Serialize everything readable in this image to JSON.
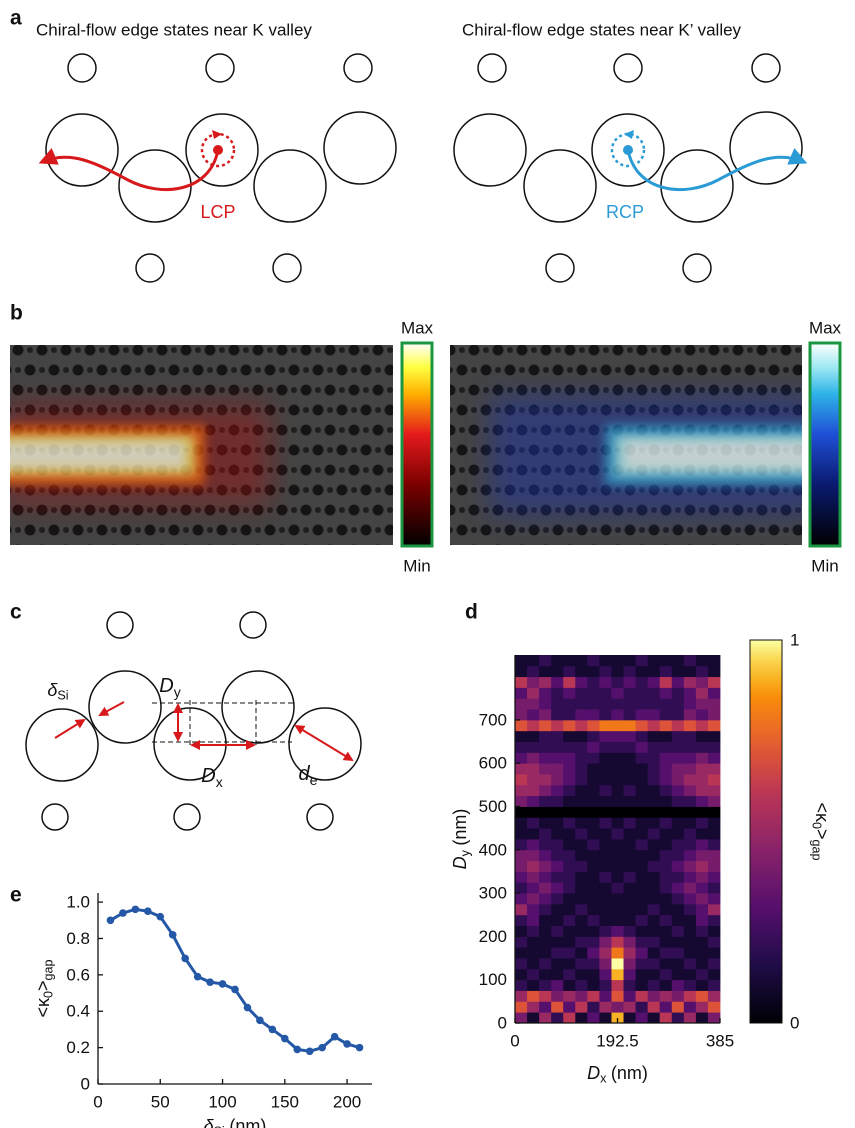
{
  "panel_labels": [
    "a",
    "b",
    "c",
    "d",
    "e"
  ],
  "a": {
    "left_title": "Chiral-flow edge states near K valley",
    "right_title": "Chiral-flow edge states near K’ valley",
    "left_mode": "LCP",
    "right_mode": "RCP"
  },
  "b": {
    "left_max": "Max",
    "left_min": "Min",
    "right_max": "Max",
    "right_min": "Min"
  },
  "c": {
    "delta": {
      "symbol": "δ",
      "sub": "Si"
    },
    "dy": {
      "symbol": "D",
      "sub": "y"
    },
    "dx": {
      "symbol": "D",
      "sub": "x"
    },
    "de": {
      "symbol": "d",
      "sub": "e"
    }
  },
  "chart_data": [
    {
      "type": "line",
      "x": [
        10,
        20,
        30,
        40,
        50,
        60,
        70,
        80,
        90,
        100,
        110,
        120,
        130,
        140,
        150,
        160,
        170,
        180,
        190,
        200,
        210
      ],
      "values": [
        0.9,
        0.94,
        0.96,
        0.95,
        0.92,
        0.82,
        0.69,
        0.59,
        0.56,
        0.55,
        0.52,
        0.42,
        0.35,
        0.3,
        0.25,
        0.19,
        0.18,
        0.2,
        0.26,
        0.22,
        0.2
      ],
      "color": "#2458a6",
      "xlim": [
        0,
        220
      ],
      "ylim": [
        0,
        1.05
      ],
      "xticks": [
        0,
        50,
        100,
        150,
        200
      ],
      "yticks": [
        0,
        0.2,
        0.4,
        0.6,
        0.8,
        {
          "value": 1,
          "label": "1.0"
        }
      ],
      "xlabel": {
        "symbol": "δ",
        "sub": "Si",
        "unit": "(nm)"
      },
      "ylabel": {
        "pre": "<κ",
        "sub1": "0",
        "post": ">",
        "sub2": "gap"
      }
    },
    {
      "type": "heatmap",
      "colormap": "inferno",
      "clim": [
        0,
        1
      ],
      "cticks": [
        0,
        1
      ],
      "xlim": [
        0,
        385
      ],
      "ylim": [
        0,
        850
      ],
      "xticks": [
        0,
        192.5,
        385
      ],
      "yticks": [
        0,
        100,
        200,
        300,
        400,
        500,
        600,
        700
      ],
      "xlabel": {
        "symbol": "D",
        "sub": "x",
        "unit": "(nm)"
      },
      "ylabel": {
        "symbol": "D",
        "sub": "y",
        "unit": "(nm)"
      },
      "clabel": {
        "pre": "<κ",
        "sub1": "0",
        "post": ">",
        "sub2": "gap"
      },
      "z": [
        [
          0.4,
          0.1,
          0.5,
          0.2,
          0.6,
          0.1,
          0.3,
          0.1,
          0.9,
          0.1,
          0.3,
          0.1,
          0.6,
          0.2,
          0.5,
          0.1,
          0.4
        ],
        [
          0.7,
          0.5,
          0.3,
          0.7,
          0.3,
          0.6,
          0.2,
          0.5,
          0.4,
          0.5,
          0.2,
          0.6,
          0.3,
          0.7,
          0.3,
          0.5,
          0.7
        ],
        [
          0.5,
          0.7,
          0.6,
          0.4,
          0.5,
          0.4,
          0.6,
          0.3,
          0.7,
          0.3,
          0.6,
          0.4,
          0.5,
          0.4,
          0.6,
          0.7,
          0.5
        ],
        [
          0.2,
          0.1,
          0.2,
          0.3,
          0.1,
          0.2,
          0.1,
          0.2,
          0.6,
          0.2,
          0.1,
          0.2,
          0.1,
          0.3,
          0.2,
          0.1,
          0.2
        ],
        [
          0.1,
          0.2,
          0.1,
          0.1,
          0.2,
          0.1,
          0.1,
          0.3,
          0.9,
          0.3,
          0.1,
          0.1,
          0.2,
          0.1,
          0.1,
          0.2,
          0.1
        ],
        [
          0.2,
          0.1,
          0.2,
          0.1,
          0.1,
          0.2,
          0.2,
          0.4,
          1.0,
          0.4,
          0.2,
          0.2,
          0.1,
          0.1,
          0.2,
          0.1,
          0.2
        ],
        [
          0.1,
          0.1,
          0.1,
          0.2,
          0.2,
          0.1,
          0.3,
          0.5,
          0.8,
          0.5,
          0.3,
          0.1,
          0.2,
          0.2,
          0.1,
          0.1,
          0.1
        ],
        [
          0.2,
          0.1,
          0.1,
          0.1,
          0.1,
          0.2,
          0.2,
          0.4,
          0.6,
          0.4,
          0.2,
          0.2,
          0.1,
          0.1,
          0.1,
          0.1,
          0.2
        ],
        [
          0.1,
          0.2,
          0.1,
          0.2,
          0.1,
          0.1,
          0.1,
          0.2,
          0.3,
          0.2,
          0.1,
          0.1,
          0.1,
          0.2,
          0.1,
          0.2,
          0.1
        ],
        [
          0.2,
          0.3,
          0.1,
          0.1,
          0.2,
          0.1,
          0.2,
          0.1,
          0.1,
          0.1,
          0.2,
          0.1,
          0.2,
          0.1,
          0.1,
          0.3,
          0.2
        ],
        [
          0.5,
          0.3,
          0.2,
          0.1,
          0.1,
          0.2,
          0.1,
          0.1,
          0.1,
          0.1,
          0.1,
          0.2,
          0.1,
          0.1,
          0.2,
          0.3,
          0.5
        ],
        [
          0.3,
          0.4,
          0.3,
          0.2,
          0.1,
          0.1,
          0.1,
          0.1,
          0.1,
          0.1,
          0.1,
          0.1,
          0.1,
          0.2,
          0.3,
          0.4,
          0.3
        ],
        [
          0.2,
          0.3,
          0.4,
          0.3,
          0.2,
          0.1,
          0.1,
          0.1,
          0.2,
          0.1,
          0.1,
          0.1,
          0.2,
          0.3,
          0.4,
          0.3,
          0.2
        ],
        [
          0.3,
          0.4,
          0.3,
          0.2,
          0.2,
          0.1,
          0.1,
          0.2,
          0.1,
          0.2,
          0.1,
          0.1,
          0.2,
          0.2,
          0.3,
          0.4,
          0.3
        ],
        [
          0.4,
          0.5,
          0.4,
          0.3,
          0.2,
          0.2,
          0.1,
          0.1,
          0.1,
          0.1,
          0.1,
          0.2,
          0.2,
          0.3,
          0.4,
          0.5,
          0.4
        ],
        [
          0.4,
          0.4,
          0.3,
          0.2,
          0.2,
          0.1,
          0.1,
          0.1,
          0.1,
          0.1,
          0.1,
          0.1,
          0.2,
          0.2,
          0.3,
          0.4,
          0.4
        ],
        [
          0.2,
          0.3,
          0.2,
          0.2,
          0.1,
          0.1,
          0.2,
          0.1,
          0.1,
          0.1,
          0.2,
          0.1,
          0.1,
          0.2,
          0.2,
          0.3,
          0.2
        ],
        [
          0.1,
          0.1,
          0.2,
          0.1,
          0.1,
          0.2,
          0.1,
          0.1,
          0.2,
          0.1,
          0.1,
          0.2,
          0.1,
          0.1,
          0.2,
          0.1,
          0.1
        ],
        [
          0.1,
          0.2,
          0.1,
          0.1,
          0.2,
          0.1,
          0.1,
          0.2,
          0.1,
          0.2,
          0.1,
          0.1,
          0.2,
          0.1,
          0.1,
          0.2,
          0.1
        ],
        [
          0.0,
          0.0,
          0.0,
          0.0,
          0.0,
          0.0,
          0.0,
          0.0,
          0.0,
          0.0,
          0.0,
          0.0,
          0.0,
          0.0,
          0.0,
          0.0,
          0.0
        ],
        [
          0.4,
          0.3,
          0.2,
          0.2,
          0.1,
          0.1,
          0.1,
          0.1,
          0.1,
          0.1,
          0.1,
          0.1,
          0.1,
          0.2,
          0.2,
          0.3,
          0.4
        ],
        [
          0.5,
          0.5,
          0.4,
          0.3,
          0.2,
          0.1,
          0.1,
          0.2,
          0.1,
          0.2,
          0.1,
          0.1,
          0.2,
          0.3,
          0.4,
          0.5,
          0.5
        ],
        [
          0.6,
          0.5,
          0.5,
          0.4,
          0.3,
          0.2,
          0.1,
          0.1,
          0.1,
          0.1,
          0.1,
          0.2,
          0.3,
          0.4,
          0.5,
          0.5,
          0.6
        ],
        [
          0.5,
          0.5,
          0.4,
          0.4,
          0.3,
          0.2,
          0.1,
          0.1,
          0.1,
          0.1,
          0.1,
          0.2,
          0.3,
          0.4,
          0.4,
          0.5,
          0.5
        ],
        [
          0.3,
          0.4,
          0.3,
          0.3,
          0.3,
          0.2,
          0.2,
          0.1,
          0.1,
          0.1,
          0.2,
          0.2,
          0.3,
          0.3,
          0.3,
          0.4,
          0.3
        ],
        [
          0.2,
          0.2,
          0.2,
          0.2,
          0.2,
          0.2,
          0.3,
          0.2,
          0.2,
          0.2,
          0.3,
          0.2,
          0.2,
          0.2,
          0.2,
          0.2,
          0.2
        ],
        [
          0.1,
          0.1,
          0.2,
          0.2,
          0.1,
          0.1,
          0.2,
          0.3,
          0.3,
          0.3,
          0.2,
          0.1,
          0.1,
          0.2,
          0.2,
          0.1,
          0.1
        ],
        [
          0.7,
          0.6,
          0.7,
          0.6,
          0.7,
          0.6,
          0.7,
          0.8,
          0.8,
          0.8,
          0.7,
          0.6,
          0.7,
          0.6,
          0.7,
          0.6,
          0.7
        ],
        [
          0.4,
          0.3,
          0.4,
          0.2,
          0.2,
          0.3,
          0.3,
          0.2,
          0.3,
          0.2,
          0.3,
          0.3,
          0.2,
          0.2,
          0.4,
          0.3,
          0.4
        ],
        [
          0.4,
          0.4,
          0.3,
          0.2,
          0.2,
          0.2,
          0.2,
          0.2,
          0.2,
          0.2,
          0.2,
          0.2,
          0.2,
          0.2,
          0.3,
          0.4,
          0.4
        ],
        [
          0.3,
          0.5,
          0.3,
          0.2,
          0.3,
          0.2,
          0.2,
          0.2,
          0.3,
          0.2,
          0.2,
          0.2,
          0.3,
          0.2,
          0.3,
          0.5,
          0.3
        ],
        [
          0.6,
          0.4,
          0.5,
          0.3,
          0.6,
          0.3,
          0.2,
          0.3,
          0.2,
          0.3,
          0.2,
          0.3,
          0.6,
          0.3,
          0.5,
          0.4,
          0.6
        ],
        [
          0.1,
          0.2,
          0.1,
          0.1,
          0.2,
          0.1,
          0.1,
          0.2,
          0.1,
          0.2,
          0.1,
          0.1,
          0.2,
          0.1,
          0.1,
          0.2,
          0.1
        ],
        [
          0.1,
          0.1,
          0.2,
          0.1,
          0.1,
          0.1,
          0.2,
          0.1,
          0.1,
          0.1,
          0.2,
          0.1,
          0.1,
          0.1,
          0.2,
          0.1,
          0.1
        ]
      ]
    }
  ]
}
